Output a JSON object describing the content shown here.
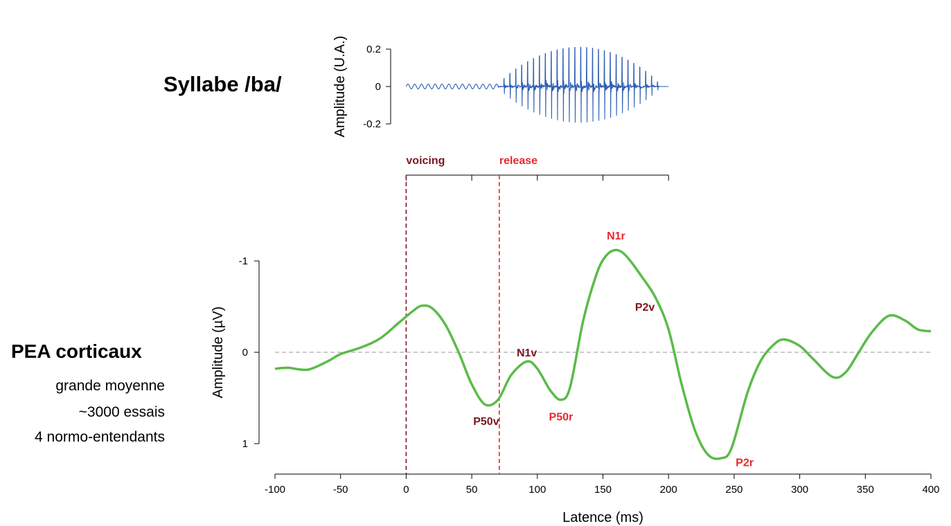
{
  "labels": {
    "syllable_title": "Syllabe /ba/",
    "erp_title": "PEA corticaux",
    "erp_notes": [
      "grande moyenne",
      "~3000 essais",
      "4 normo-entendants"
    ]
  },
  "colors": {
    "waveform": "#2f5fb3",
    "erp_curve": "#5bbb4a",
    "voicing": "#7a1620",
    "release": "#e8282f",
    "zero_line": "#aaaaaa"
  },
  "chart_data": [
    {
      "type": "line",
      "name": "syllable-waveform",
      "ylabel": "Amplitude (U.A.)",
      "y_ticks": [
        "0.2",
        "0",
        "-0.2"
      ],
      "y_tick_values": [
        0.2,
        0,
        -0.2
      ],
      "ylim": [
        -0.22,
        0.22
      ],
      "xlim": [
        0,
        200
      ],
      "x_ticks": [
        0,
        50,
        100,
        150,
        200
      ],
      "segments": [
        {
          "from": 0,
          "to": 70,
          "kind": "voicing",
          "amp": 0.013
        },
        {
          "from": 70,
          "to": 200,
          "kind": "release",
          "amp_max": 0.21
        }
      ],
      "markers": [
        {
          "label": "voicing",
          "x": 0,
          "color_key": "voicing"
        },
        {
          "label": "release",
          "x": 71,
          "color_key": "release"
        }
      ]
    },
    {
      "type": "line",
      "name": "cortical-erp",
      "xlabel": "Latence (ms)",
      "ylabel": "Amplitude (µV)",
      "xlim": [
        -100,
        400
      ],
      "ylim": [
        -1.3,
        1.3
      ],
      "y_inverted": true,
      "x_ticks": [
        "-100",
        "-50",
        "0",
        "50",
        "100",
        "150",
        "200",
        "250",
        "300",
        "350",
        "400"
      ],
      "x_tick_values": [
        -100,
        -50,
        0,
        50,
        100,
        150,
        200,
        250,
        300,
        350,
        400
      ],
      "y_ticks": [
        "-1",
        "0",
        "1"
      ],
      "y_tick_values": [
        -1,
        0,
        1
      ],
      "x": [
        -100,
        -90,
        -75,
        -60,
        -50,
        -35,
        -20,
        -5,
        5,
        12,
        20,
        30,
        40,
        50,
        60,
        70,
        80,
        92,
        100,
        110,
        118,
        125,
        135,
        145,
        152,
        160,
        168,
        180,
        190,
        200,
        210,
        220,
        230,
        240,
        248,
        260,
        270,
        280,
        288,
        300,
        310,
        325,
        335,
        345,
        355,
        368,
        380,
        390,
        400
      ],
      "y": [
        0.18,
        0.17,
        0.19,
        0.1,
        0.02,
        -0.05,
        -0.15,
        -0.33,
        -0.45,
        -0.51,
        -0.48,
        -0.3,
        0.0,
        0.35,
        0.57,
        0.52,
        0.25,
        0.1,
        0.18,
        0.42,
        0.52,
        0.38,
        -0.35,
        -0.85,
        -1.05,
        -1.12,
        -1.05,
        -0.82,
        -0.6,
        -0.25,
        0.35,
        0.85,
        1.12,
        1.16,
        1.05,
        0.45,
        0.1,
        -0.08,
        -0.14,
        -0.07,
        0.07,
        0.27,
        0.22,
        0.0,
        -0.22,
        -0.4,
        -0.35,
        -0.25,
        -0.23
      ],
      "annotations": [
        {
          "label": "N1r",
          "x": 160,
          "y": -1.28,
          "color_key": "release"
        },
        {
          "label": "P2v",
          "x": 182,
          "y": -0.5,
          "color_key": "voicing"
        },
        {
          "label": "N1v",
          "x": 92,
          "y": 0.0,
          "color_key": "voicing"
        },
        {
          "label": "P50v",
          "x": 61,
          "y": 0.75,
          "color_key": "voicing"
        },
        {
          "label": "P50r",
          "x": 118,
          "y": 0.7,
          "color_key": "release"
        },
        {
          "label": "P2r",
          "x": 258,
          "y": 1.2,
          "color_key": "release"
        }
      ]
    }
  ]
}
